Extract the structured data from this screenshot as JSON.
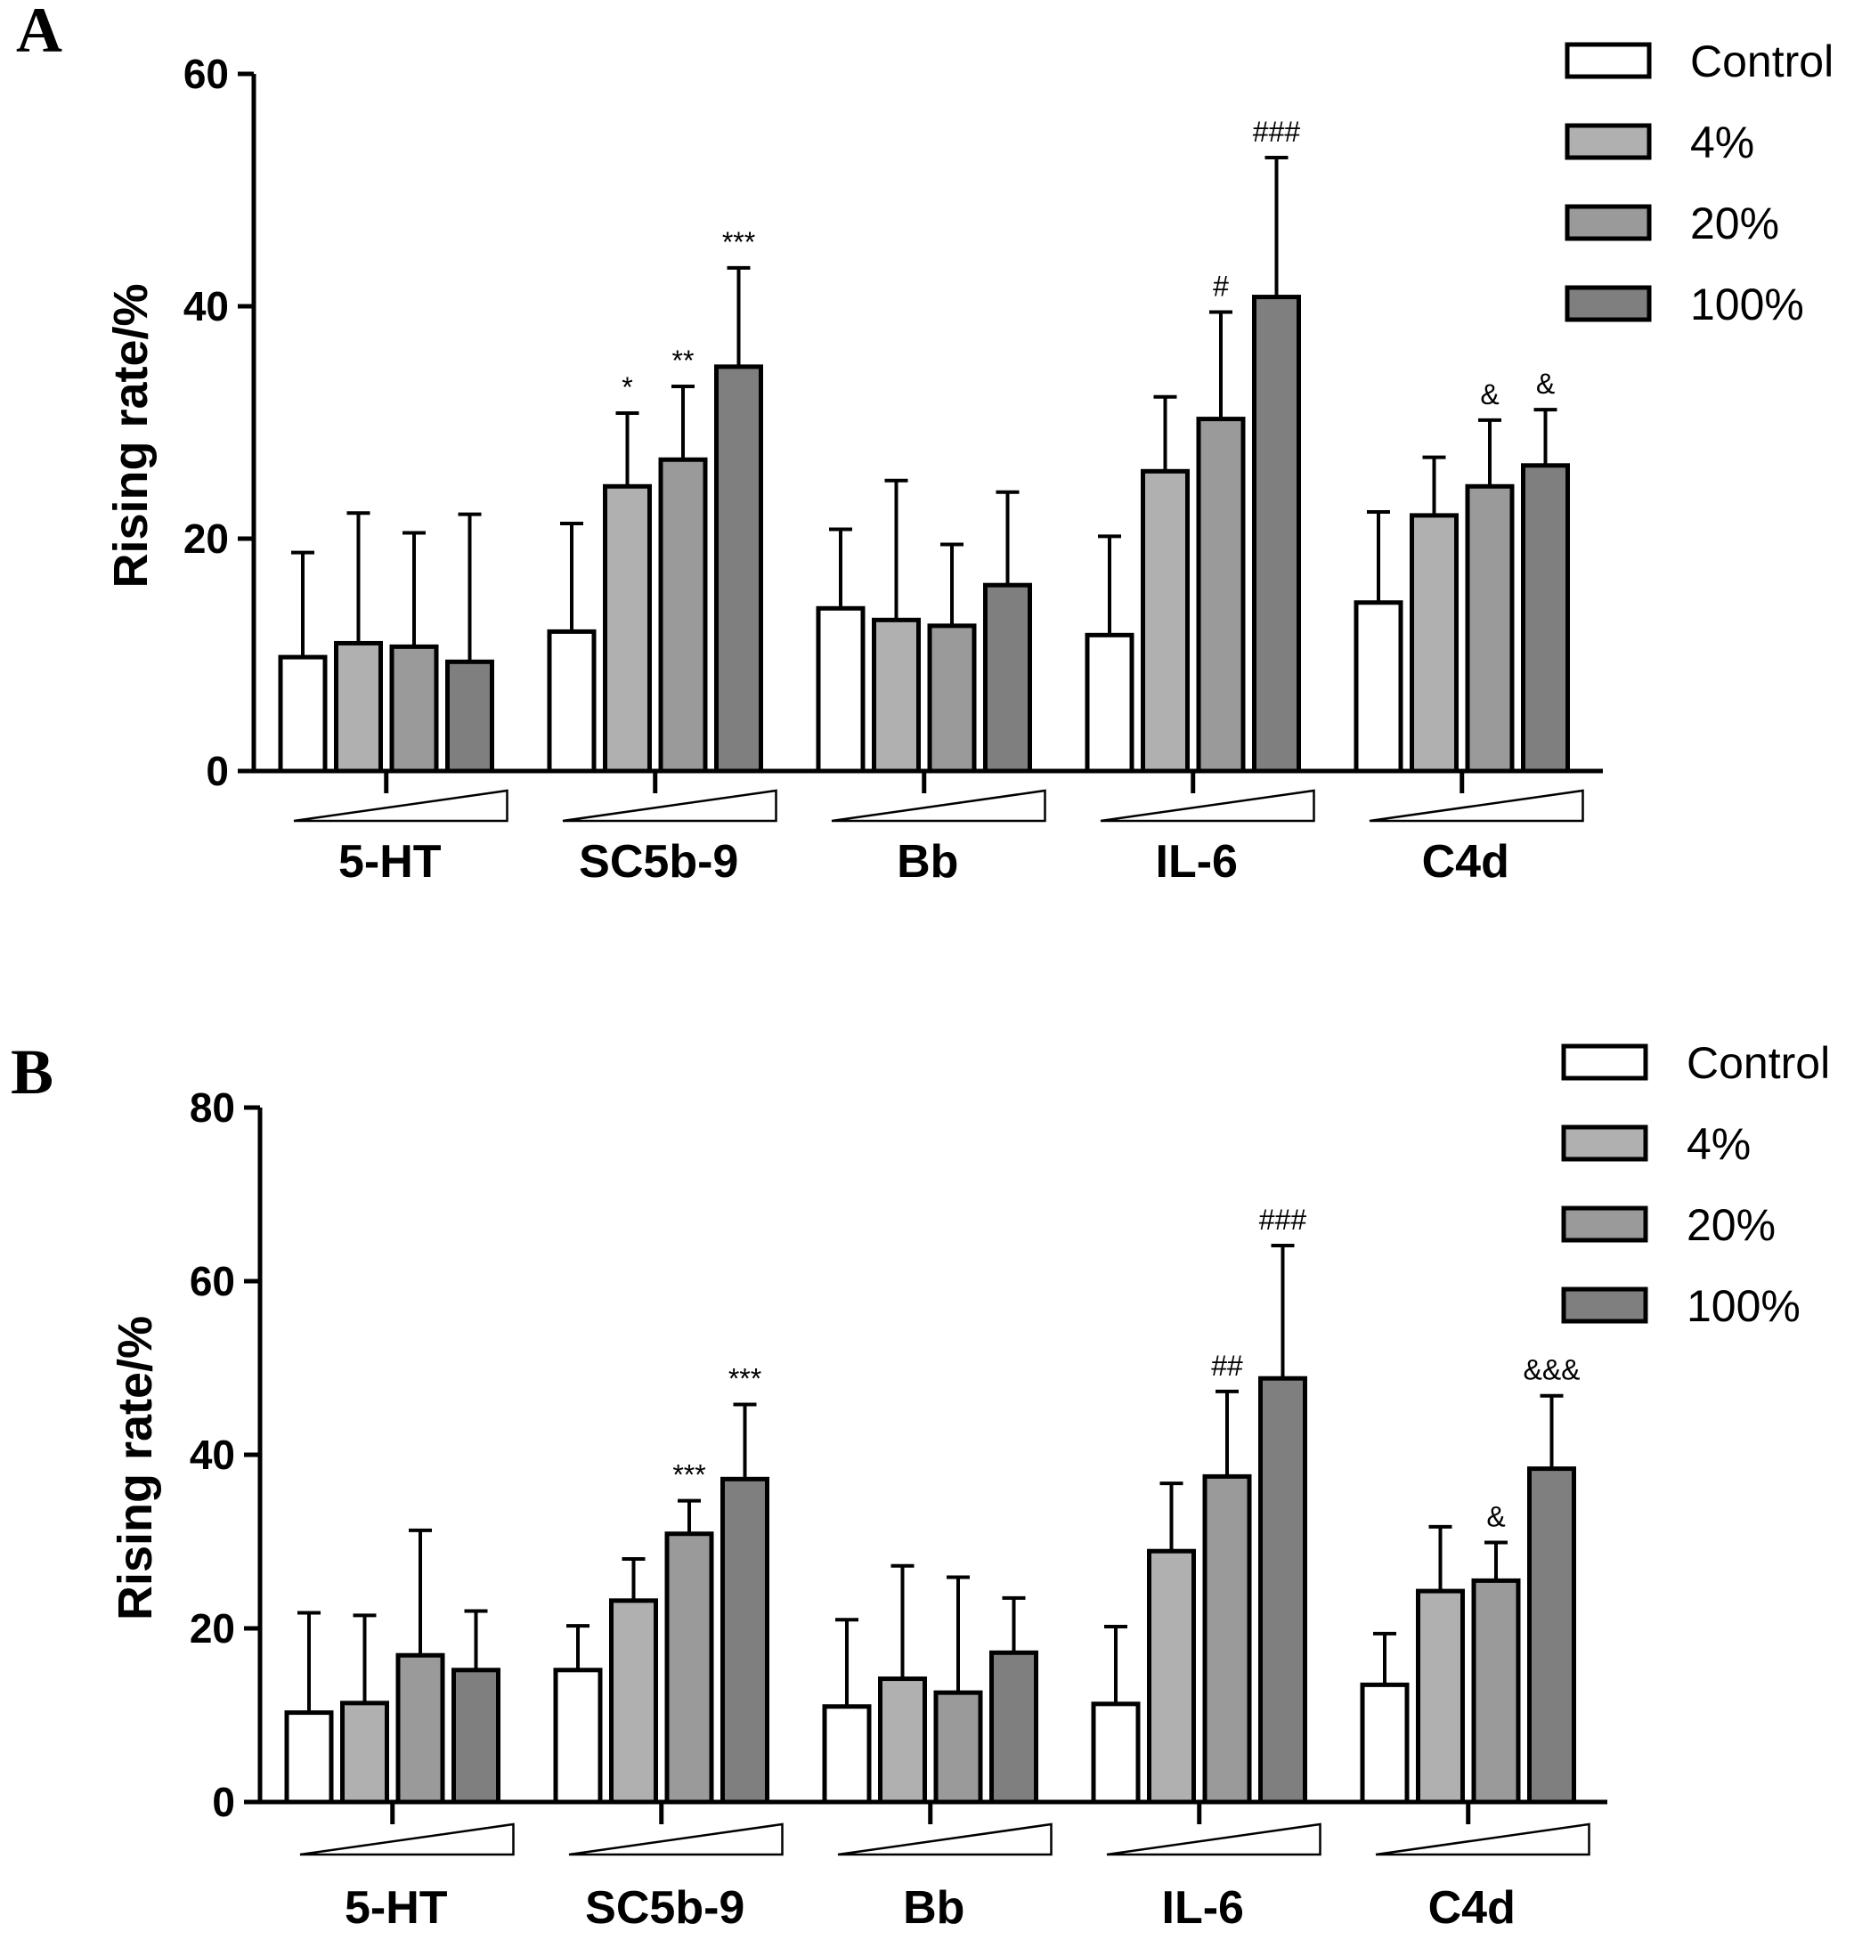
{
  "legend_colors": {
    "Control": "#ffffff",
    "4%": "#b0b0b0",
    "20%": "#9a9a9a",
    "100%": "#7f7f7f"
  },
  "chart_data": [
    {
      "panel": "A",
      "type": "bar",
      "ylabel": "Rising rate/%",
      "ylim": [
        0,
        60
      ],
      "yticks": [
        "0",
        "20",
        "40",
        "60"
      ],
      "categories": [
        "5-HT",
        "SC5b-9",
        "Bb",
        "IL-6",
        "C4d"
      ],
      "legend": [
        "Control",
        "4%",
        "20%",
        "100%"
      ],
      "series": [
        {
          "name": "Control",
          "values": [
            9.8,
            12.0,
            14.0,
            11.7,
            14.5
          ],
          "errors": [
            9.0,
            9.3,
            6.8,
            8.5,
            7.8
          ]
        },
        {
          "name": "4%",
          "values": [
            11.0,
            24.5,
            13.0,
            25.8,
            22.0
          ],
          "errors": [
            11.2,
            6.3,
            12.0,
            6.4,
            5.0
          ]
        },
        {
          "name": "20%",
          "values": [
            10.7,
            26.8,
            12.5,
            30.3,
            24.5
          ],
          "errors": [
            9.8,
            6.3,
            7.0,
            9.2,
            5.7
          ]
        },
        {
          "name": "100%",
          "values": [
            9.4,
            34.8,
            16.0,
            40.8,
            26.3
          ],
          "errors": [
            12.7,
            8.5,
            8.0,
            12.0,
            4.8
          ]
        }
      ],
      "annotations": [
        {
          "category": "SC5b-9",
          "series": "4%",
          "text": "*"
        },
        {
          "category": "SC5b-9",
          "series": "20%",
          "text": "**"
        },
        {
          "category": "SC5b-9",
          "series": "100%",
          "text": "***"
        },
        {
          "category": "IL-6",
          "series": "20%",
          "text": "#"
        },
        {
          "category": "IL-6",
          "series": "100%",
          "text": "###"
        },
        {
          "category": "C4d",
          "series": "20%",
          "text": "&"
        },
        {
          "category": "C4d",
          "series": "100%",
          "text": "&"
        }
      ]
    },
    {
      "panel": "B",
      "type": "bar",
      "ylabel": "Rising rate/%",
      "ylim": [
        0,
        80
      ],
      "yticks": [
        "0",
        "20",
        "40",
        "60",
        "80"
      ],
      "categories": [
        "5-HT",
        "SC5b-9",
        "Bb",
        "IL-6",
        "C4d"
      ],
      "legend": [
        "Control",
        "4%",
        "20%",
        "100%"
      ],
      "series": [
        {
          "name": "Control",
          "values": [
            10.3,
            15.2,
            11.0,
            11.3,
            13.5
          ],
          "errors": [
            11.5,
            5.1,
            10.0,
            8.9,
            5.9
          ]
        },
        {
          "name": "4%",
          "values": [
            11.4,
            23.2,
            14.2,
            28.9,
            24.3
          ],
          "errors": [
            10.1,
            4.8,
            13.0,
            7.8,
            7.4
          ]
        },
        {
          "name": "20%",
          "values": [
            16.9,
            30.9,
            12.6,
            37.5,
            25.5
          ],
          "errors": [
            14.4,
            3.8,
            13.3,
            9.8,
            4.4
          ]
        },
        {
          "name": "100%",
          "values": [
            15.2,
            37.2,
            17.2,
            48.8,
            38.4
          ],
          "errors": [
            6.8,
            8.6,
            6.3,
            15.3,
            8.4
          ]
        }
      ],
      "annotations": [
        {
          "category": "SC5b-9",
          "series": "20%",
          "text": "***"
        },
        {
          "category": "SC5b-9",
          "series": "100%",
          "text": "***"
        },
        {
          "category": "IL-6",
          "series": "20%",
          "text": "##"
        },
        {
          "category": "IL-6",
          "series": "100%",
          "text": "###"
        },
        {
          "category": "C4d",
          "series": "20%",
          "text": "&"
        },
        {
          "category": "C4d",
          "series": "100%",
          "text": "&&&"
        }
      ]
    }
  ]
}
